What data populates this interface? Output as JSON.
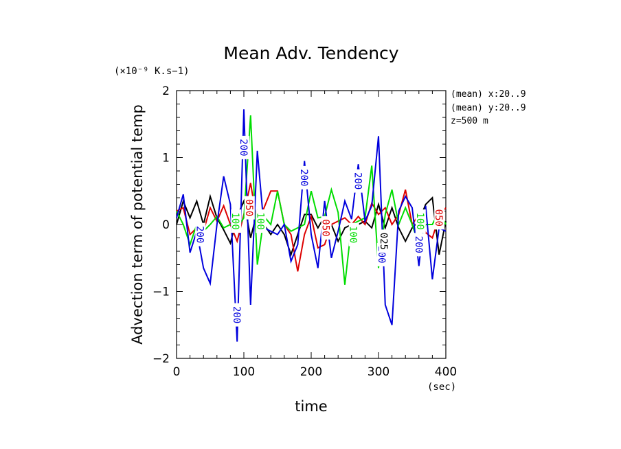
{
  "chart_data": {
    "type": "line",
    "title": "Mean Adv. Tendency",
    "ylabel": "Advection term of potential temp",
    "yunit": "(×10⁻⁹ K.s−1)",
    "xlabel": "time",
    "xunit": "(sec)",
    "xlim": [
      0,
      400
    ],
    "ylim": [
      -2,
      2
    ],
    "xticks": [
      "0",
      "100",
      "200",
      "300",
      "400"
    ],
    "yticks": [
      "−2",
      "−1",
      "0",
      "1",
      "2"
    ],
    "annotations": [
      "(mean) x:20..9",
      "(mean) y:20..9",
      "z=500 m"
    ],
    "x": [
      0,
      10,
      20,
      30,
      40,
      50,
      60,
      70,
      80,
      90,
      100,
      110,
      120,
      130,
      140,
      150,
      160,
      170,
      180,
      190,
      200,
      210,
      220,
      230,
      240,
      250,
      260,
      270,
      280,
      290,
      300,
      310,
      320,
      330,
      340,
      350,
      360,
      370,
      380,
      390,
      400
    ],
    "series": [
      {
        "name": "025",
        "color": "#000000",
        "values": [
          0.0,
          0.35,
          0.1,
          0.35,
          0.0,
          0.42,
          0.1,
          -0.08,
          -0.28,
          0.12,
          0.35,
          -0.2,
          0.2,
          0.0,
          -0.15,
          0.0,
          -0.15,
          -0.45,
          -0.15,
          0.15,
          0.15,
          -0.05,
          0.12,
          0.0,
          -0.25,
          -0.05,
          0.0,
          0.0,
          0.05,
          -0.05,
          0.3,
          -0.05,
          0.25,
          -0.05,
          -0.25,
          -0.05,
          0.05,
          0.3,
          0.4,
          -0.45,
          0.05
        ]
      },
      {
        "name": "050",
        "color": "#dd0000",
        "values": [
          0.2,
          0.25,
          -0.15,
          -0.05,
          -0.1,
          0.25,
          0.05,
          0.28,
          0.0,
          -0.25,
          0.15,
          0.62,
          0.0,
          0.25,
          0.5,
          0.5,
          0.0,
          -0.15,
          -0.7,
          -0.15,
          0.12,
          -0.35,
          -0.3,
          0.0,
          0.05,
          0.1,
          0.0,
          0.12,
          0.0,
          0.32,
          0.15,
          0.25,
          0.0,
          0.15,
          0.52,
          0.0,
          0.15,
          -0.12,
          -0.2,
          0.12,
          0.25
        ]
      },
      {
        "name": "100",
        "color": "#00dd00",
        "values": [
          0.2,
          0.0,
          -0.3,
          0.0,
          -0.1,
          0.0,
          0.12,
          -0.05,
          0.0,
          -0.05,
          0.1,
          1.63,
          -0.6,
          0.12,
          0.0,
          0.5,
          0.0,
          -0.1,
          -0.05,
          0.0,
          0.5,
          0.1,
          0.12,
          0.52,
          0.18,
          -0.9,
          0.0,
          0.05,
          0.1,
          0.88,
          -0.65,
          0.15,
          0.52,
          0.0,
          0.25,
          0.0,
          -0.3,
          0.0,
          0.0,
          0.2,
          0.0
        ]
      },
      {
        "name": "200",
        "color": "#0000dd",
        "values": [
          0.1,
          0.45,
          -0.42,
          -0.1,
          -0.65,
          -0.88,
          0.0,
          0.72,
          0.3,
          -1.75,
          1.72,
          -1.2,
          1.1,
          -0.05,
          -0.1,
          -0.15,
          0.0,
          -0.55,
          -0.3,
          0.95,
          -0.15,
          -0.65,
          0.35,
          -0.5,
          -0.1,
          0.35,
          0.08,
          0.9,
          0.05,
          0.28,
          1.32,
          -1.2,
          -1.5,
          0.2,
          0.42,
          0.25,
          -0.62,
          0.28,
          -0.82,
          -0.05,
          -0.1
        ]
      }
    ],
    "contour_labels": [
      {
        "text": "200",
        "series": "200",
        "x": 100,
        "y": 1.15
      },
      {
        "text": "200",
        "series": "200",
        "x": 90,
        "y": -1.35
      },
      {
        "text": "200",
        "series": "200",
        "x": 35,
        "y": -0.15
      },
      {
        "text": "200",
        "series": "200",
        "x": 190,
        "y": 0.7
      },
      {
        "text": "200",
        "series": "200",
        "x": 270,
        "y": 0.65
      },
      {
        "text": "200",
        "series": "200",
        "x": 305,
        "y": -0.45
      },
      {
        "text": "200",
        "series": "200",
        "x": 360,
        "y": -0.3
      },
      {
        "text": "100",
        "series": "100",
        "x": 88,
        "y": 0.05
      },
      {
        "text": "100",
        "series": "100",
        "x": 125,
        "y": 0.05
      },
      {
        "text": "100",
        "series": "100",
        "x": 263,
        "y": -0.15
      },
      {
        "text": "100",
        "series": "100",
        "x": 362,
        "y": 0.05
      },
      {
        "text": "050",
        "series": "050",
        "x": 108,
        "y": 0.25
      },
      {
        "text": "050",
        "series": "050",
        "x": 222,
        "y": -0.05
      },
      {
        "text": "050",
        "series": "050",
        "x": 390,
        "y": 0.1
      },
      {
        "text": "025",
        "series": "025",
        "x": 308,
        "y": -0.25
      }
    ]
  }
}
